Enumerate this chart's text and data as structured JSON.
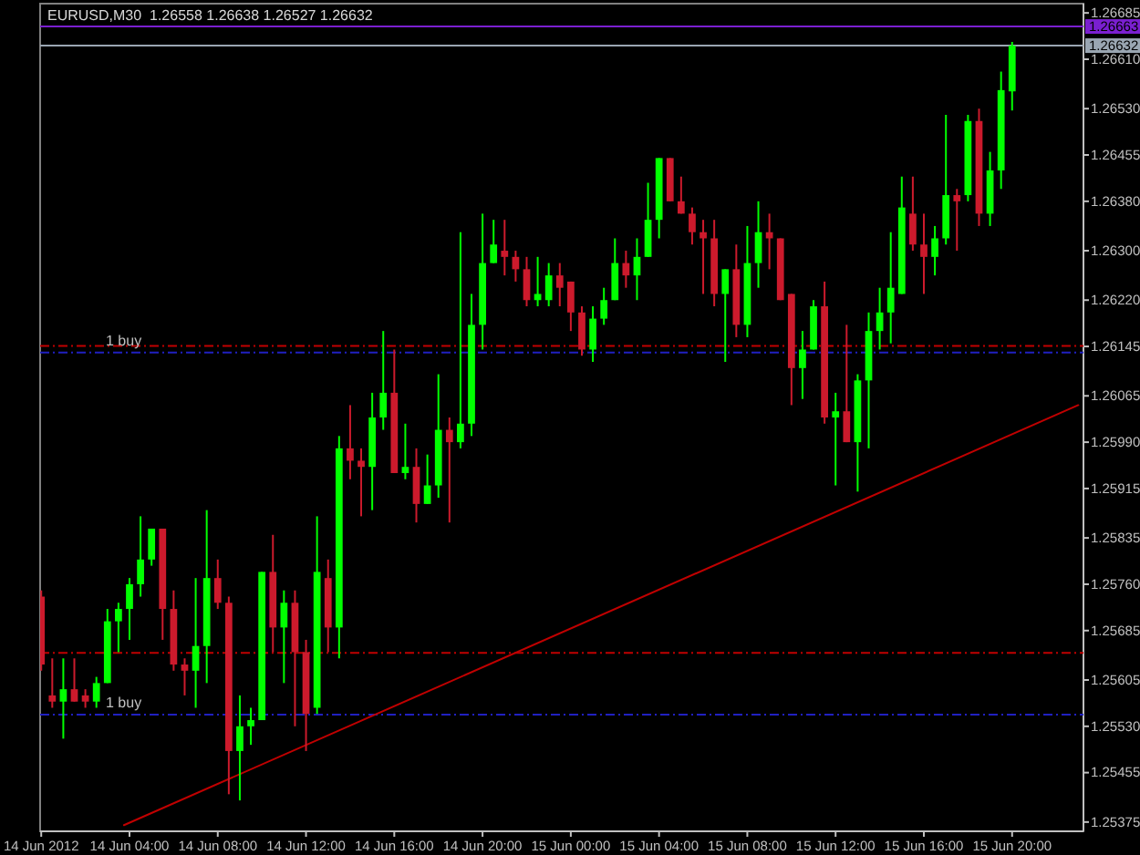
{
  "chart_data": {
    "type": "candlestick",
    "title": "EURUSD,M30  1.26558 1.26638 1.26527 1.26632",
    "x": [
      "2012-06-14T00:00",
      "2012-06-14T00:30",
      "2012-06-14T01:00",
      "2012-06-14T01:30",
      "2012-06-14T02:00",
      "2012-06-14T02:30",
      "2012-06-14T03:00",
      "2012-06-14T03:30",
      "2012-06-14T04:00",
      "2012-06-14T04:30",
      "2012-06-14T05:00",
      "2012-06-14T05:30",
      "2012-06-14T06:00",
      "2012-06-14T06:30",
      "2012-06-14T07:00",
      "2012-06-14T07:30",
      "2012-06-14T08:00",
      "2012-06-14T08:30",
      "2012-06-14T09:00",
      "2012-06-14T09:30",
      "2012-06-14T10:00",
      "2012-06-14T10:30",
      "2012-06-14T11:00",
      "2012-06-14T11:30",
      "2012-06-14T12:00",
      "2012-06-14T12:30",
      "2012-06-14T13:00",
      "2012-06-14T13:30",
      "2012-06-14T14:00",
      "2012-06-14T14:30",
      "2012-06-14T15:00",
      "2012-06-14T15:30",
      "2012-06-14T16:00",
      "2012-06-14T16:30",
      "2012-06-14T17:00",
      "2012-06-14T17:30",
      "2012-06-14T18:00",
      "2012-06-14T18:30",
      "2012-06-14T19:00",
      "2012-06-14T19:30",
      "2012-06-14T20:00",
      "2012-06-14T20:30",
      "2012-06-14T21:00",
      "2012-06-14T21:30",
      "2012-06-14T22:00",
      "2012-06-14T22:30",
      "2012-06-14T23:00",
      "2012-06-14T23:30",
      "2012-06-15T00:00",
      "2012-06-15T00:30",
      "2012-06-15T01:00",
      "2012-06-15T01:30",
      "2012-06-15T02:00",
      "2012-06-15T02:30",
      "2012-06-15T03:00",
      "2012-06-15T03:30",
      "2012-06-15T04:00",
      "2012-06-15T04:30",
      "2012-06-15T05:00",
      "2012-06-15T05:30",
      "2012-06-15T06:00",
      "2012-06-15T06:30",
      "2012-06-15T07:00",
      "2012-06-15T07:30",
      "2012-06-15T08:00",
      "2012-06-15T08:30",
      "2012-06-15T09:00",
      "2012-06-15T09:30",
      "2012-06-15T10:00",
      "2012-06-15T10:30",
      "2012-06-15T11:00",
      "2012-06-15T11:30",
      "2012-06-15T12:00",
      "2012-06-15T12:30",
      "2012-06-15T13:00",
      "2012-06-15T13:30",
      "2012-06-15T14:00",
      "2012-06-15T14:30",
      "2012-06-15T15:00",
      "2012-06-15T15:30",
      "2012-06-15T16:00",
      "2012-06-15T16:30",
      "2012-06-15T17:00",
      "2012-06-15T17:30",
      "2012-06-15T18:00",
      "2012-06-15T18:30",
      "2012-06-15T19:00",
      "2012-06-15T19:30",
      "2012-06-15T20:00"
    ],
    "ohlc": [
      [
        1.2574,
        1.2575,
        1.2562,
        1.2563
      ],
      [
        1.2558,
        1.2564,
        1.2556,
        1.2557
      ],
      [
        1.2557,
        1.2564,
        1.2551,
        1.2559
      ],
      [
        1.2559,
        1.2564,
        1.2557,
        1.2557
      ],
      [
        1.2558,
        1.2559,
        1.2556,
        1.2557
      ],
      [
        1.2557,
        1.2561,
        1.2556,
        1.256
      ],
      [
        1.256,
        1.2572,
        1.256,
        1.257
      ],
      [
        1.257,
        1.2573,
        1.2565,
        1.2572
      ],
      [
        1.2572,
        1.2577,
        1.2567,
        1.2576
      ],
      [
        1.2576,
        1.2587,
        1.2574,
        1.258
      ],
      [
        1.258,
        1.2585,
        1.2579,
        1.2585
      ],
      [
        1.2585,
        1.2585,
        1.2567,
        1.2572
      ],
      [
        1.2572,
        1.2575,
        1.2562,
        1.2563
      ],
      [
        1.2563,
        1.2564,
        1.2558,
        1.2562
      ],
      [
        1.2562,
        1.2577,
        1.2556,
        1.2566
      ],
      [
        1.2566,
        1.2588,
        1.256,
        1.2577
      ],
      [
        1.2577,
        1.258,
        1.2572,
        1.2573
      ],
      [
        1.2573,
        1.2574,
        1.2542,
        1.2549
      ],
      [
        1.2549,
        1.2558,
        1.2541,
        1.2553
      ],
      [
        1.2553,
        1.2556,
        1.255,
        1.2554
      ],
      [
        1.2554,
        1.2578,
        1.2554,
        1.2578
      ],
      [
        1.2578,
        1.2584,
        1.2565,
        1.2569
      ],
      [
        1.2569,
        1.2575,
        1.256,
        1.2573
      ],
      [
        1.2573,
        1.2575,
        1.2553,
        1.2565
      ],
      [
        1.2565,
        1.2567,
        1.2549,
        1.2555
      ],
      [
        1.2556,
        1.2587,
        1.2555,
        1.2578
      ],
      [
        1.2577,
        1.258,
        1.2565,
        1.2569
      ],
      [
        1.2569,
        1.26,
        1.2564,
        1.2598
      ],
      [
        1.2598,
        1.2605,
        1.2593,
        1.2596
      ],
      [
        1.2596,
        1.2598,
        1.2587,
        1.2595
      ],
      [
        1.2595,
        1.2607,
        1.2588,
        1.2603
      ],
      [
        1.2603,
        1.2617,
        1.2601,
        1.2607
      ],
      [
        1.2607,
        1.2614,
        1.2594,
        1.2594
      ],
      [
        1.2594,
        1.2602,
        1.2593,
        1.2595
      ],
      [
        1.2595,
        1.2598,
        1.2586,
        1.2589
      ],
      [
        1.2589,
        1.2597,
        1.2589,
        1.2592
      ],
      [
        1.2592,
        1.261,
        1.259,
        1.2601
      ],
      [
        1.2601,
        1.2603,
        1.2586,
        1.2599
      ],
      [
        1.2599,
        1.2633,
        1.2598,
        1.2602
      ],
      [
        1.2602,
        1.2623,
        1.26,
        1.2618
      ],
      [
        1.2618,
        1.2636,
        1.2614,
        1.2628
      ],
      [
        1.2628,
        1.2635,
        1.2628,
        1.2631
      ],
      [
        1.263,
        1.2635,
        1.2626,
        1.2629
      ],
      [
        1.2629,
        1.263,
        1.2625,
        1.2627
      ],
      [
        1.2627,
        1.2629,
        1.2621,
        1.2622
      ],
      [
        1.2622,
        1.2629,
        1.2621,
        1.2623
      ],
      [
        1.2622,
        1.2628,
        1.2621,
        1.2626
      ],
      [
        1.2626,
        1.2628,
        1.2621,
        1.2624
      ],
      [
        1.2625,
        1.2625,
        1.2617,
        1.262
      ],
      [
        1.262,
        1.2621,
        1.2613,
        1.2614
      ],
      [
        1.2614,
        1.2621,
        1.2612,
        1.2619
      ],
      [
        1.2619,
        1.2624,
        1.2618,
        1.2622
      ],
      [
        1.2622,
        1.2632,
        1.2622,
        1.2628
      ],
      [
        1.2628,
        1.263,
        1.2624,
        1.2626
      ],
      [
        1.2626,
        1.2632,
        1.2622,
        1.2629
      ],
      [
        1.2629,
        1.2641,
        1.2629,
        1.2635
      ],
      [
        1.2635,
        1.2645,
        1.2632,
        1.2645
      ],
      [
        1.2645,
        1.2645,
        1.2638,
        1.2638
      ],
      [
        1.2638,
        1.2642,
        1.2636,
        1.2636
      ],
      [
        1.2636,
        1.2637,
        1.2631,
        1.2633
      ],
      [
        1.2633,
        1.2635,
        1.2623,
        1.2632
      ],
      [
        1.2632,
        1.2635,
        1.2621,
        1.2623
      ],
      [
        1.2623,
        1.2627,
        1.2612,
        1.2627
      ],
      [
        1.2627,
        1.2631,
        1.2616,
        1.2618
      ],
      [
        1.2618,
        1.2634,
        1.2616,
        1.2628
      ],
      [
        1.2628,
        1.2638,
        1.2624,
        1.2633
      ],
      [
        1.2633,
        1.2636,
        1.2627,
        1.2632
      ],
      [
        1.2632,
        1.2632,
        1.2622,
        1.2622
      ],
      [
        1.2623,
        1.2623,
        1.2605,
        1.2611
      ],
      [
        1.2611,
        1.2617,
        1.2606,
        1.2614
      ],
      [
        1.2614,
        1.2622,
        1.2614,
        1.2621
      ],
      [
        1.2621,
        1.2625,
        1.2602,
        1.2603
      ],
      [
        1.2603,
        1.2607,
        1.2592,
        1.2604
      ],
      [
        1.2604,
        1.2618,
        1.2599,
        1.2599
      ],
      [
        1.2599,
        1.261,
        1.2591,
        1.2609
      ],
      [
        1.2609,
        1.262,
        1.2598,
        1.2617
      ],
      [
        1.2617,
        1.2624,
        1.2614,
        1.262
      ],
      [
        1.262,
        1.2633,
        1.2615,
        1.2624
      ],
      [
        1.2623,
        1.2642,
        1.2623,
        1.2637
      ],
      [
        1.2636,
        1.2642,
        1.263,
        1.2631
      ],
      [
        1.2631,
        1.2636,
        1.2623,
        1.2629
      ],
      [
        1.2629,
        1.2634,
        1.2626,
        1.2632
      ],
      [
        1.2632,
        1.2652,
        1.2631,
        1.2639
      ],
      [
        1.2639,
        1.264,
        1.263,
        1.2638
      ],
      [
        1.2639,
        1.2652,
        1.2638,
        1.2651
      ],
      [
        1.2651,
        1.2653,
        1.2634,
        1.2636
      ],
      [
        1.2636,
        1.2646,
        1.2634,
        1.2643
      ],
      [
        1.2643,
        1.2659,
        1.264,
        1.2656
      ],
      [
        1.26558,
        1.26638,
        1.26527,
        1.26632
      ]
    ],
    "colors": [
      "#cc1a2c",
      "#cc1a2c",
      "#00ff00",
      "#cc1a2c",
      "#cc1a2c",
      "#00ff00",
      "#00ff00",
      "#00ff00",
      "#00ff00",
      "#00ff00",
      "#00ff00",
      "#cc1a2c",
      "#cc1a2c",
      "#cc1a2c",
      "#00ff00",
      "#00ff00",
      "#cc1a2c",
      "#cc1a2c",
      "#00ff00",
      "#00ff00",
      "#00ff00",
      "#cc1a2c",
      "#00ff00",
      "#cc1a2c",
      "#cc1a2c",
      "#00ff00",
      "#cc1a2c",
      "#00ff00",
      "#cc1a2c",
      "#cc1a2c",
      "#00ff00",
      "#00ff00",
      "#cc1a2c",
      "#00ff00",
      "#cc1a2c",
      "#00ff00",
      "#00ff00",
      "#cc1a2c",
      "#00ff00",
      "#00ff00",
      "#00ff00",
      "#00ff00",
      "#cc1a2c",
      "#cc1a2c",
      "#cc1a2c",
      "#00ff00",
      "#00ff00",
      "#cc1a2c",
      "#cc1a2c",
      "#cc1a2c",
      "#00ff00",
      "#00ff00",
      "#00ff00",
      "#cc1a2c",
      "#00ff00",
      "#00ff00",
      "#00ff00",
      "#cc1a2c",
      "#cc1a2c",
      "#cc1a2c",
      "#cc1a2c",
      "#cc1a2c",
      "#00ff00",
      "#cc1a2c",
      "#00ff00",
      "#00ff00",
      "#cc1a2c",
      "#cc1a2c",
      "#cc1a2c",
      "#00ff00",
      "#00ff00",
      "#cc1a2c",
      "#00ff00",
      "#cc1a2c",
      "#00ff00",
      "#00ff00",
      "#00ff00",
      "#00ff00",
      "#00ff00",
      "#cc1a2c",
      "#cc1a2c",
      "#00ff00",
      "#00ff00",
      "#cc1a2c",
      "#00ff00",
      "#cc1a2c",
      "#00ff00",
      "#00ff00",
      "#00ff00"
    ],
    "series": [
      {
        "type": "line",
        "x": [
          "2012-06-14T03:45",
          "2012-06-15T23:00"
        ],
        "values": [
          1.2537,
          1.2605
        ],
        "color": "#c00000"
      }
    ],
    "ref_lines": [
      {
        "axis": "y",
        "value": 1.26663,
        "label": "1.26663",
        "color": "#7a1fd0"
      },
      {
        "axis": "y",
        "value": 1.26632,
        "label": "1.26632",
        "color": "#9aa6b2"
      },
      {
        "axis": "y",
        "value": 1.26146,
        "color": "#c00000",
        "line_style": "dashed"
      },
      {
        "axis": "y",
        "value": 1.26135,
        "label": "1 buy",
        "color": "#2020c0",
        "line_style": "dashed"
      },
      {
        "axis": "y",
        "value": 1.25649,
        "color": "#c00000",
        "line_style": "dashed"
      },
      {
        "axis": "y",
        "value": 1.25549,
        "label": "1 buy",
        "color": "#2020c0",
        "line_style": "dashed"
      }
    ],
    "xlim": [
      "2012-06-13T23:57",
      "2012-06-15T23:14"
    ],
    "xticks": [
      {
        "value": "2012-06-14T00:00",
        "label": "14 Jun 2012"
      },
      {
        "value": "2012-06-14T04:00",
        "label": "14 Jun 04:00"
      },
      {
        "value": "2012-06-14T08:00",
        "label": "14 Jun 08:00"
      },
      {
        "value": "2012-06-14T12:00",
        "label": "14 Jun 12:00"
      },
      {
        "value": "2012-06-14T16:00",
        "label": "14 Jun 16:00"
      },
      {
        "value": "2012-06-14T20:00",
        "label": "14 Jun 20:00"
      },
      {
        "value": "2012-06-15T00:00",
        "label": "15 Jun 00:00"
      },
      {
        "value": "2012-06-15T04:00",
        "label": "15 Jun 04:00"
      },
      {
        "value": "2012-06-15T08:00",
        "label": "15 Jun 08:00"
      },
      {
        "value": "2012-06-15T12:00",
        "label": "15 Jun 12:00"
      },
      {
        "value": "2012-06-15T16:00",
        "label": "15 Jun 16:00"
      },
      {
        "value": "2012-06-15T20:00",
        "label": "15 Jun 20:00"
      }
    ],
    "ylim": [
      1.2536,
      1.267
    ],
    "yticks": [
      1.26685,
      {
        "value": 1.2661,
        "label": "1.26610"
      },
      {
        "value": 1.2653,
        "label": "1.26530"
      },
      1.26455,
      {
        "value": 1.2638,
        "label": "1.26380"
      },
      {
        "value": 1.263,
        "label": "1.26300"
      },
      {
        "value": 1.2622,
        "label": "1.26220"
      },
      1.26145,
      1.26065,
      {
        "value": 1.2599,
        "label": "1.25990"
      },
      1.25915,
      1.25835,
      {
        "value": 1.2576,
        "label": "1.25760"
      },
      1.25685,
      1.25605,
      {
        "value": 1.2553,
        "label": "1.25530"
      },
      1.25455,
      1.25375
    ]
  }
}
